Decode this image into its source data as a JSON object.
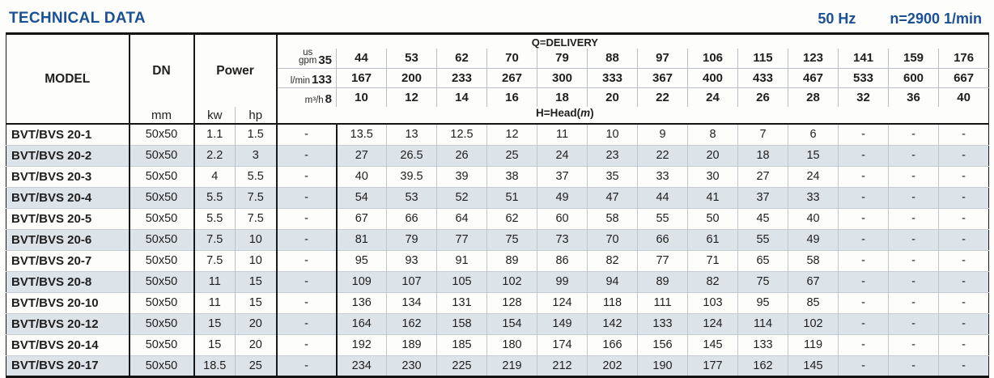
{
  "page": {
    "title": "TECHNICAL DATA",
    "frequency": "50 Hz",
    "speed": "n=2900 1/min"
  },
  "table": {
    "model_header": "MODEL",
    "dn_header": "DN",
    "power_header": "Power",
    "mm_label": "mm",
    "kw_label": "kw",
    "hp_label": "hp",
    "q_delivery_label": "Q=DELIVERY",
    "h_head_prefix": "H=Head(",
    "h_head_unit": "m",
    "h_head_suffix": ")",
    "flow_units": [
      {
        "label_top": "us",
        "label_bottom": "gpm",
        "values": [
          "35",
          "44",
          "53",
          "62",
          "70",
          "79",
          "88",
          "97",
          "106",
          "115",
          "123",
          "141",
          "159",
          "176"
        ]
      },
      {
        "label": "l/min",
        "values": [
          "133",
          "167",
          "200",
          "233",
          "267",
          "300",
          "333",
          "367",
          "400",
          "433",
          "467",
          "533",
          "600",
          "667"
        ]
      },
      {
        "label": "m³/h",
        "values": [
          "8",
          "10",
          "12",
          "14",
          "16",
          "18",
          "20",
          "22",
          "24",
          "26",
          "28",
          "32",
          "36",
          "40"
        ]
      }
    ],
    "rows": [
      {
        "model": "BVT/BVS 20-1",
        "dn": "50x50",
        "kw": "1.1",
        "hp": "1.5",
        "heads": [
          "-",
          "13.5",
          "13",
          "12.5",
          "12",
          "11",
          "10",
          "9",
          "8",
          "7",
          "6",
          "-",
          "-",
          "-"
        ]
      },
      {
        "model": "BVT/BVS 20-2",
        "dn": "50x50",
        "kw": "2.2",
        "hp": "3",
        "heads": [
          "-",
          "27",
          "26.5",
          "26",
          "25",
          "24",
          "23",
          "22",
          "20",
          "18",
          "15",
          "-",
          "-",
          "-"
        ]
      },
      {
        "model": "BVT/BVS 20-3",
        "dn": "50x50",
        "kw": "4",
        "hp": "5.5",
        "heads": [
          "-",
          "40",
          "39.5",
          "39",
          "38",
          "37",
          "35",
          "33",
          "30",
          "27",
          "24",
          "-",
          "-",
          "-"
        ]
      },
      {
        "model": "BVT/BVS 20-4",
        "dn": "50x50",
        "kw": "5.5",
        "hp": "7.5",
        "heads": [
          "-",
          "54",
          "53",
          "52",
          "51",
          "49",
          "47",
          "44",
          "41",
          "37",
          "33",
          "-",
          "-",
          "-"
        ]
      },
      {
        "model": "BVT/BVS 20-5",
        "dn": "50x50",
        "kw": "5.5",
        "hp": "7.5",
        "heads": [
          "-",
          "67",
          "66",
          "64",
          "62",
          "60",
          "58",
          "55",
          "50",
          "45",
          "40",
          "-",
          "-",
          "-"
        ]
      },
      {
        "model": "BVT/BVS 20-6",
        "dn": "50x50",
        "kw": "7.5",
        "hp": "10",
        "heads": [
          "-",
          "81",
          "79",
          "77",
          "75",
          "73",
          "70",
          "66",
          "61",
          "55",
          "49",
          "-",
          "-",
          "-"
        ]
      },
      {
        "model": "BVT/BVS 20-7",
        "dn": "50x50",
        "kw": "7.5",
        "hp": "10",
        "heads": [
          "-",
          "95",
          "93",
          "91",
          "89",
          "86",
          "82",
          "77",
          "71",
          "65",
          "58",
          "-",
          "-",
          "-"
        ]
      },
      {
        "model": "BVT/BVS 20-8",
        "dn": "50x50",
        "kw": "11",
        "hp": "15",
        "heads": [
          "-",
          "109",
          "107",
          "105",
          "102",
          "99",
          "94",
          "89",
          "82",
          "75",
          "67",
          "-",
          "-",
          "-"
        ]
      },
      {
        "model": "BVT/BVS 20-10",
        "dn": "50x50",
        "kw": "11",
        "hp": "15",
        "heads": [
          "-",
          "136",
          "134",
          "131",
          "128",
          "124",
          "118",
          "111",
          "103",
          "95",
          "85",
          "-",
          "-",
          "-"
        ]
      },
      {
        "model": "BVT/BVS 20-12",
        "dn": "50x50",
        "kw": "15",
        "hp": "20",
        "heads": [
          "-",
          "164",
          "162",
          "158",
          "154",
          "149",
          "142",
          "133",
          "124",
          "114",
          "102",
          "-",
          "-",
          "-"
        ]
      },
      {
        "model": "BVT/BVS 20-14",
        "dn": "50x50",
        "kw": "15",
        "hp": "20",
        "heads": [
          "-",
          "192",
          "189",
          "185",
          "180",
          "174",
          "166",
          "156",
          "145",
          "133",
          "119",
          "-",
          "-",
          "-"
        ]
      },
      {
        "model": "BVT/BVS 20-17",
        "dn": "50x50",
        "kw": "18.5",
        "hp": "25",
        "heads": [
          "-",
          "234",
          "230",
          "225",
          "219",
          "212",
          "202",
          "190",
          "177",
          "162",
          "145",
          "-",
          "-",
          "-"
        ]
      }
    ]
  }
}
